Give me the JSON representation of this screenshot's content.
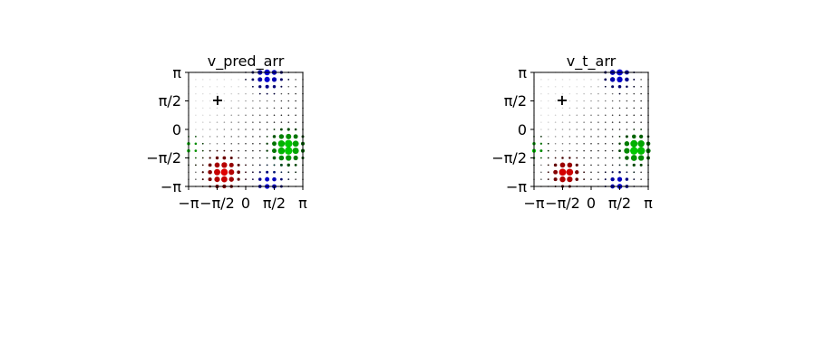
{
  "chart_data": [
    {
      "type": "scatter",
      "title": "v_pred_arr",
      "xlim": [
        -3.1416,
        3.1416
      ],
      "ylim": [
        -3.1416,
        3.1416
      ],
      "xtick_labels": [
        "−π",
        "−π/2",
        "0",
        "π/2",
        "π"
      ],
      "ytick_labels": [
        "π",
        "π/2",
        "0",
        "−π/2",
        "−π"
      ],
      "grid": "17x17 points spanning [-π, π] on both axes",
      "marker": {
        "x": -1.5708,
        "y": 1.5708,
        "symbol": "+",
        "color": "#000000"
      },
      "blobs": [
        {
          "color": "#e00000",
          "x": -1.25,
          "y": -2.4,
          "sigma": 0.7,
          "size_max": 7.0
        },
        {
          "color": "#0000e0",
          "x": 1.2,
          "y": 3.0,
          "sigma": 0.65,
          "size_max": 6.0
        },
        {
          "color": "#0000e0",
          "x": 1.3,
          "y": -3.0,
          "sigma": 0.6,
          "size_max": 5.0
        },
        {
          "color": "#00d000",
          "x": 2.3,
          "y": -1.0,
          "sigma": 0.7,
          "size_max": 8.0
        },
        {
          "color": "#00d000",
          "x": -3.14,
          "y": -1.0,
          "sigma": 0.5,
          "size_max": 3.5
        }
      ]
    },
    {
      "type": "scatter",
      "title": "v_t_arr",
      "xlim": [
        -3.1416,
        3.1416
      ],
      "ylim": [
        -3.1416,
        3.1416
      ],
      "xtick_labels": [
        "−π",
        "−π/2",
        "0",
        "π/2",
        "π"
      ],
      "ytick_labels": [
        "π",
        "π/2",
        "0",
        "−π/2",
        "−π"
      ],
      "grid": "17x17 points spanning [-π, π] on both axes",
      "marker": {
        "x": -1.5708,
        "y": 1.5708,
        "symbol": "+",
        "color": "#000000"
      },
      "blobs": [
        {
          "color": "#e00000",
          "x": -1.4,
          "y": -2.4,
          "sigma": 0.55,
          "size_max": 7.5
        },
        {
          "color": "#0000e0",
          "x": 1.5,
          "y": 3.0,
          "sigma": 0.55,
          "size_max": 6.5
        },
        {
          "color": "#0000e0",
          "x": 1.5,
          "y": -3.0,
          "sigma": 0.5,
          "size_max": 5.5
        },
        {
          "color": "#00d000",
          "x": 2.5,
          "y": -1.1,
          "sigma": 0.6,
          "size_max": 8.5
        },
        {
          "color": "#00d000",
          "x": -3.14,
          "y": -1.1,
          "sigma": 0.45,
          "size_max": 4.0
        }
      ]
    }
  ]
}
